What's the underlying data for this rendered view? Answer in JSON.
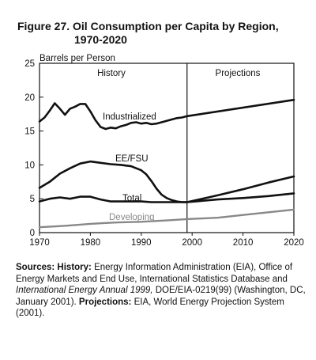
{
  "figure": {
    "title_line1": "Figure 27.  Oil Consumption per Capita by Region,",
    "title_line2": "1970-2020"
  },
  "chart_data": {
    "type": "line",
    "ylabel": "Barrels per Person",
    "xlabel": "",
    "xlim": [
      1970,
      2020
    ],
    "ylim": [
      0,
      25
    ],
    "xticks": [
      1970,
      1980,
      1990,
      2000,
      2010,
      2020
    ],
    "yticks": [
      0,
      5,
      10,
      15,
      20,
      25
    ],
    "grid": false,
    "divider_x": 1999,
    "region_labels": [
      "History",
      "Projections"
    ],
    "series": [
      {
        "name": "Industrialized",
        "color": "#111111",
        "x": [
          1970,
          1971,
          1972,
          1973,
          1974,
          1975,
          1976,
          1977,
          1978,
          1979,
          1980,
          1981,
          1982,
          1983,
          1984,
          1985,
          1986,
          1987,
          1988,
          1989,
          1990,
          1991,
          1992,
          1993,
          1994,
          1995,
          1996,
          1997,
          1998,
          1999,
          2020
        ],
        "y": [
          16.4,
          17.0,
          18.0,
          19.1,
          18.3,
          17.4,
          18.3,
          18.6,
          19.0,
          19.0,
          17.9,
          16.6,
          15.6,
          15.3,
          15.5,
          15.4,
          15.7,
          15.9,
          16.2,
          16.3,
          16.1,
          16.2,
          16.0,
          16.1,
          16.3,
          16.5,
          16.7,
          16.9,
          17.0,
          17.2,
          19.6
        ]
      },
      {
        "name": "EE/FSU",
        "color": "#111111",
        "x": [
          1970,
          1972,
          1974,
          1976,
          1978,
          1980,
          1982,
          1984,
          1986,
          1988,
          1990,
          1991,
          1992,
          1993,
          1994,
          1995,
          1996,
          1997,
          1998,
          1999,
          2005,
          2010,
          2015,
          2020
        ],
        "y": [
          6.6,
          7.5,
          8.7,
          9.5,
          10.2,
          10.5,
          10.3,
          10.1,
          10.0,
          9.8,
          9.2,
          8.6,
          7.6,
          6.5,
          5.6,
          5.1,
          4.8,
          4.6,
          4.5,
          4.5,
          5.5,
          6.4,
          7.4,
          8.3
        ]
      },
      {
        "name": "Total",
        "color": "#111111",
        "x": [
          1970,
          1972,
          1974,
          1976,
          1978,
          1980,
          1982,
          1984,
          1986,
          1988,
          1990,
          1992,
          1994,
          1996,
          1998,
          1999,
          2005,
          2010,
          2015,
          2020
        ],
        "y": [
          4.6,
          5.0,
          5.2,
          5.0,
          5.3,
          5.3,
          4.9,
          4.6,
          4.6,
          4.6,
          4.6,
          4.5,
          4.5,
          4.5,
          4.5,
          4.5,
          4.9,
          5.1,
          5.4,
          5.8
        ]
      },
      {
        "name": "Developing",
        "color": "#888888",
        "x": [
          1970,
          1975,
          1980,
          1985,
          1990,
          1995,
          1999,
          2005,
          2010,
          2015,
          2020
        ],
        "y": [
          0.8,
          1.0,
          1.3,
          1.5,
          1.6,
          1.8,
          2.0,
          2.2,
          2.6,
          3.0,
          3.4
        ]
      }
    ]
  },
  "sources": {
    "sources_label": "Sources:",
    "history_label": "History:",
    "history_text_a": "Energy Information Administration (EIA), Office of Energy Markets and End Use, International Statistics Database and",
    "history_italic": "International Energy Annual 1999,",
    "history_text_b": "DOE/EIA-0219(99) (Washington, DC, January 2001).",
    "projections_label": "Projections:",
    "projections_text": "EIA, World Energy Projection System (2001)."
  }
}
